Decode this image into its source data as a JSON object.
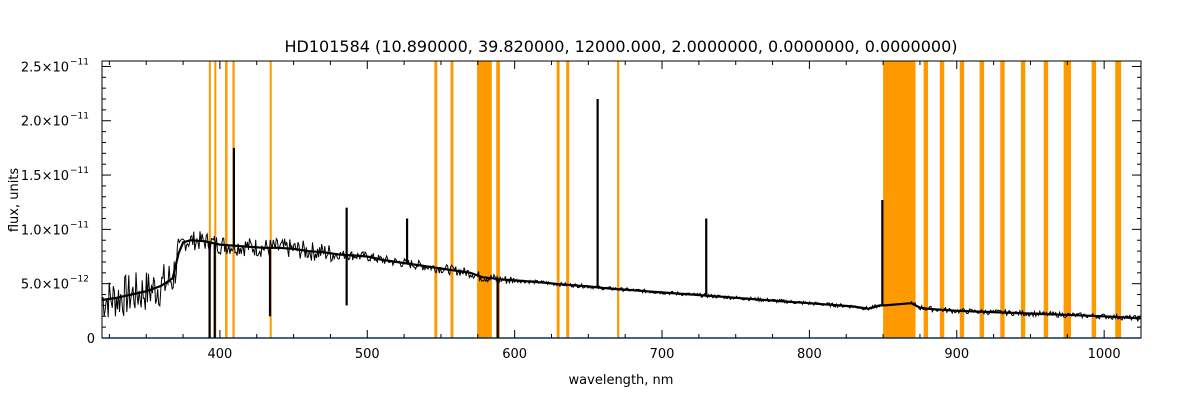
{
  "chart_data": {
    "type": "line",
    "title": "HD101584   (10.890000, 39.820000, 12000.000, 2.0000000, 0.0000000, 0.0000000)",
    "xlabel": "wavelength, nm",
    "ylabel": "flux, units",
    "xlim": [
      320,
      1025
    ],
    "ylim": [
      0,
      2.55e-11
    ],
    "grid": false,
    "x_ticks": [
      {
        "value": 400,
        "label": "400"
      },
      {
        "value": 500,
        "label": "500"
      },
      {
        "value": 600,
        "label": "600"
      },
      {
        "value": 700,
        "label": "700"
      },
      {
        "value": 800,
        "label": "800"
      },
      {
        "value": 900,
        "label": "900"
      },
      {
        "value": 1000,
        "label": "1000"
      }
    ],
    "y_ticks": [
      {
        "value": 0,
        "mantissa": "0",
        "exponent": ""
      },
      {
        "value": 5e-12,
        "mantissa": "5.0×10",
        "exponent": "−12"
      },
      {
        "value": 1e-11,
        "mantissa": "1.0×10",
        "exponent": "−11"
      },
      {
        "value": 1.5e-11,
        "mantissa": "1.5×10",
        "exponent": "−11"
      },
      {
        "value": 2e-11,
        "mantissa": "2.0×10",
        "exponent": "−11"
      },
      {
        "value": 2.5e-11,
        "mantissa": "2.5×10",
        "exponent": "−11"
      }
    ],
    "masked_bands": [
      [
        392.5,
        393.5
      ],
      [
        396.2,
        397.2
      ],
      [
        403.5,
        405.2
      ],
      [
        408.5,
        410.0
      ],
      [
        433.8,
        435.0
      ],
      [
        545.5,
        547.5
      ],
      [
        556.5,
        558.5
      ],
      [
        574.5,
        584.5
      ],
      [
        587.5,
        590.0
      ],
      [
        628.5,
        630.5
      ],
      [
        635.0,
        637.0
      ],
      [
        669.5,
        671.0
      ],
      [
        850.0,
        872.0
      ],
      [
        877.5,
        880.5
      ],
      [
        888.5,
        891.5
      ],
      [
        902.0,
        905.0
      ],
      [
        915.5,
        918.5
      ],
      [
        929.5,
        932.5
      ],
      [
        943.5,
        946.5
      ],
      [
        959.0,
        962.0
      ],
      [
        972.5,
        977.5
      ],
      [
        991.5,
        994.5
      ],
      [
        1007.5,
        1011.5
      ]
    ],
    "series": [
      {
        "color": "#000000",
        "x": [
          320,
          330,
          340,
          350,
          360,
          368,
          372,
          375,
          380,
          390,
          400,
          410,
          420,
          430,
          440,
          450,
          460,
          470,
          480,
          490,
          500,
          510,
          520,
          530,
          540,
          550,
          560,
          570,
          578,
          585,
          590,
          600,
          610,
          620,
          630,
          640,
          650,
          660,
          670,
          680,
          690,
          700,
          710,
          720,
          730,
          740,
          750,
          760,
          770,
          780,
          790,
          800,
          810,
          820,
          830,
          840,
          848,
          851,
          869,
          875,
          880,
          890,
          900,
          920,
          940,
          960,
          980,
          1000,
          1025
        ],
        "y": [
          3.5e-12,
          3.7e-12,
          4e-12,
          4.3e-12,
          4.8e-12,
          5.5e-12,
          7.8e-12,
          8.8e-12,
          9e-12,
          8.9e-12,
          8.6e-12,
          8.5e-12,
          8.4e-12,
          8.3e-12,
          8.3e-12,
          8.2e-12,
          8e-12,
          7.9e-12,
          7.7e-12,
          7.6e-12,
          7.5e-12,
          7.2e-12,
          7e-12,
          6.8e-12,
          6.6e-12,
          6.4e-12,
          6.2e-12,
          6e-12,
          5.6e-12,
          5.5e-12,
          5.4e-12,
          5.3e-12,
          5.2e-12,
          5.1e-12,
          4.95e-12,
          4.85e-12,
          4.75e-12,
          4.6e-12,
          4.5e-12,
          4.4e-12,
          4.3e-12,
          4.2e-12,
          4.1e-12,
          4e-12,
          3.9e-12,
          3.8e-12,
          3.7e-12,
          3.6e-12,
          3.5e-12,
          3.4e-12,
          3.3e-12,
          3.2e-12,
          3.1e-12,
          3e-12,
          2.9e-12,
          2.7e-12,
          3e-12,
          3e-12,
          3.2e-12,
          2.8e-12,
          2.7e-12,
          2.6e-12,
          2.5e-12,
          2.4e-12,
          2.3e-12,
          2.2e-12,
          2.1e-12,
          2e-12,
          1.8e-12
        ]
      },
      {
        "color": "#1e90ff",
        "x": [
          320,
          1025
        ],
        "y": [
          0,
          0
        ]
      }
    ],
    "spikes": [
      {
        "x": 409.5,
        "y": 1.75e-11
      },
      {
        "x": 486.0,
        "y": 1.2e-11
      },
      {
        "x": 527.0,
        "y": 1.1e-11
      },
      {
        "x": 656.3,
        "y": 2.2e-11
      },
      {
        "x": 730.0,
        "y": 1.1e-11
      },
      {
        "x": 849.5,
        "y": 1.27e-11
      }
    ],
    "dips": [
      {
        "x": 393.0,
        "y": 0
      },
      {
        "x": 396.5,
        "y": 0
      },
      {
        "x": 588.5,
        "y": 0
      },
      {
        "x": 434.0,
        "y": 2e-12
      },
      {
        "x": 486.0,
        "y": 3e-12
      }
    ]
  }
}
